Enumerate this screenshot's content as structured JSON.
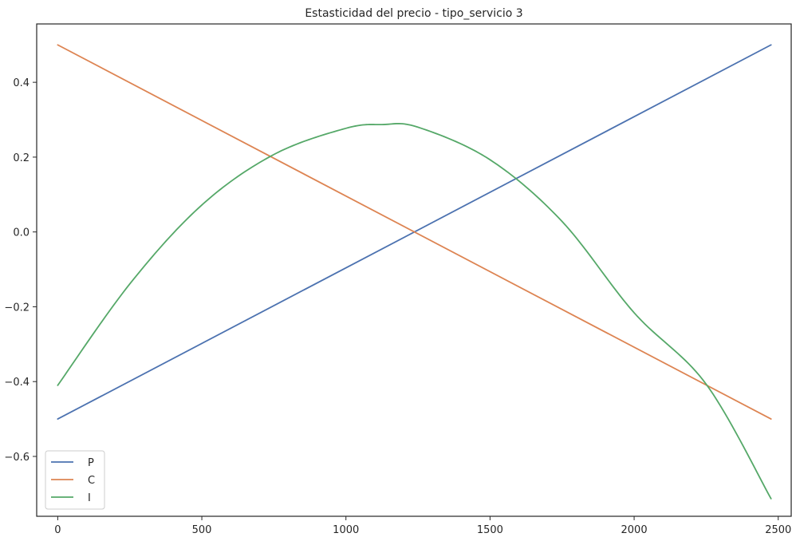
{
  "chart_data": {
    "type": "line",
    "title": "Estasticidad del precio - tipo_servicio 3",
    "xlabel": "",
    "ylabel": "",
    "xlim": [
      -73,
      2545
    ],
    "ylim": [
      -0.76,
      0.556
    ],
    "xticks": [
      0,
      500,
      1000,
      1500,
      2000,
      2500
    ],
    "yticks": [
      -0.6,
      -0.4,
      -0.2,
      0.0,
      0.2,
      0.4
    ],
    "xtick_labels": [
      "0",
      "500",
      "1000",
      "1500",
      "2000",
      "2500"
    ],
    "ytick_labels": [
      "−0.6",
      "−0.4",
      "−0.2",
      "0.0",
      "0.2",
      "0.4"
    ],
    "grid": false,
    "legend_position": "lower-left",
    "series": [
      {
        "name": "P",
        "color": "#4c72b0",
        "x": [
          0,
          2475
        ],
        "y": [
          -0.5,
          0.5
        ]
      },
      {
        "name": "C",
        "color": "#dd8452",
        "x": [
          0,
          2475
        ],
        "y": [
          0.5,
          -0.5
        ]
      },
      {
        "name": "I",
        "color": "#55a868",
        "x": [
          0,
          250,
          500,
          750,
          1000,
          1125,
          1250,
          1500,
          1750,
          2000,
          2250,
          2475
        ],
        "y": [
          -0.41,
          -0.139,
          0.072,
          0.207,
          0.277,
          0.287,
          0.28,
          0.193,
          0.028,
          -0.216,
          -0.407,
          -0.713
        ]
      }
    ]
  }
}
